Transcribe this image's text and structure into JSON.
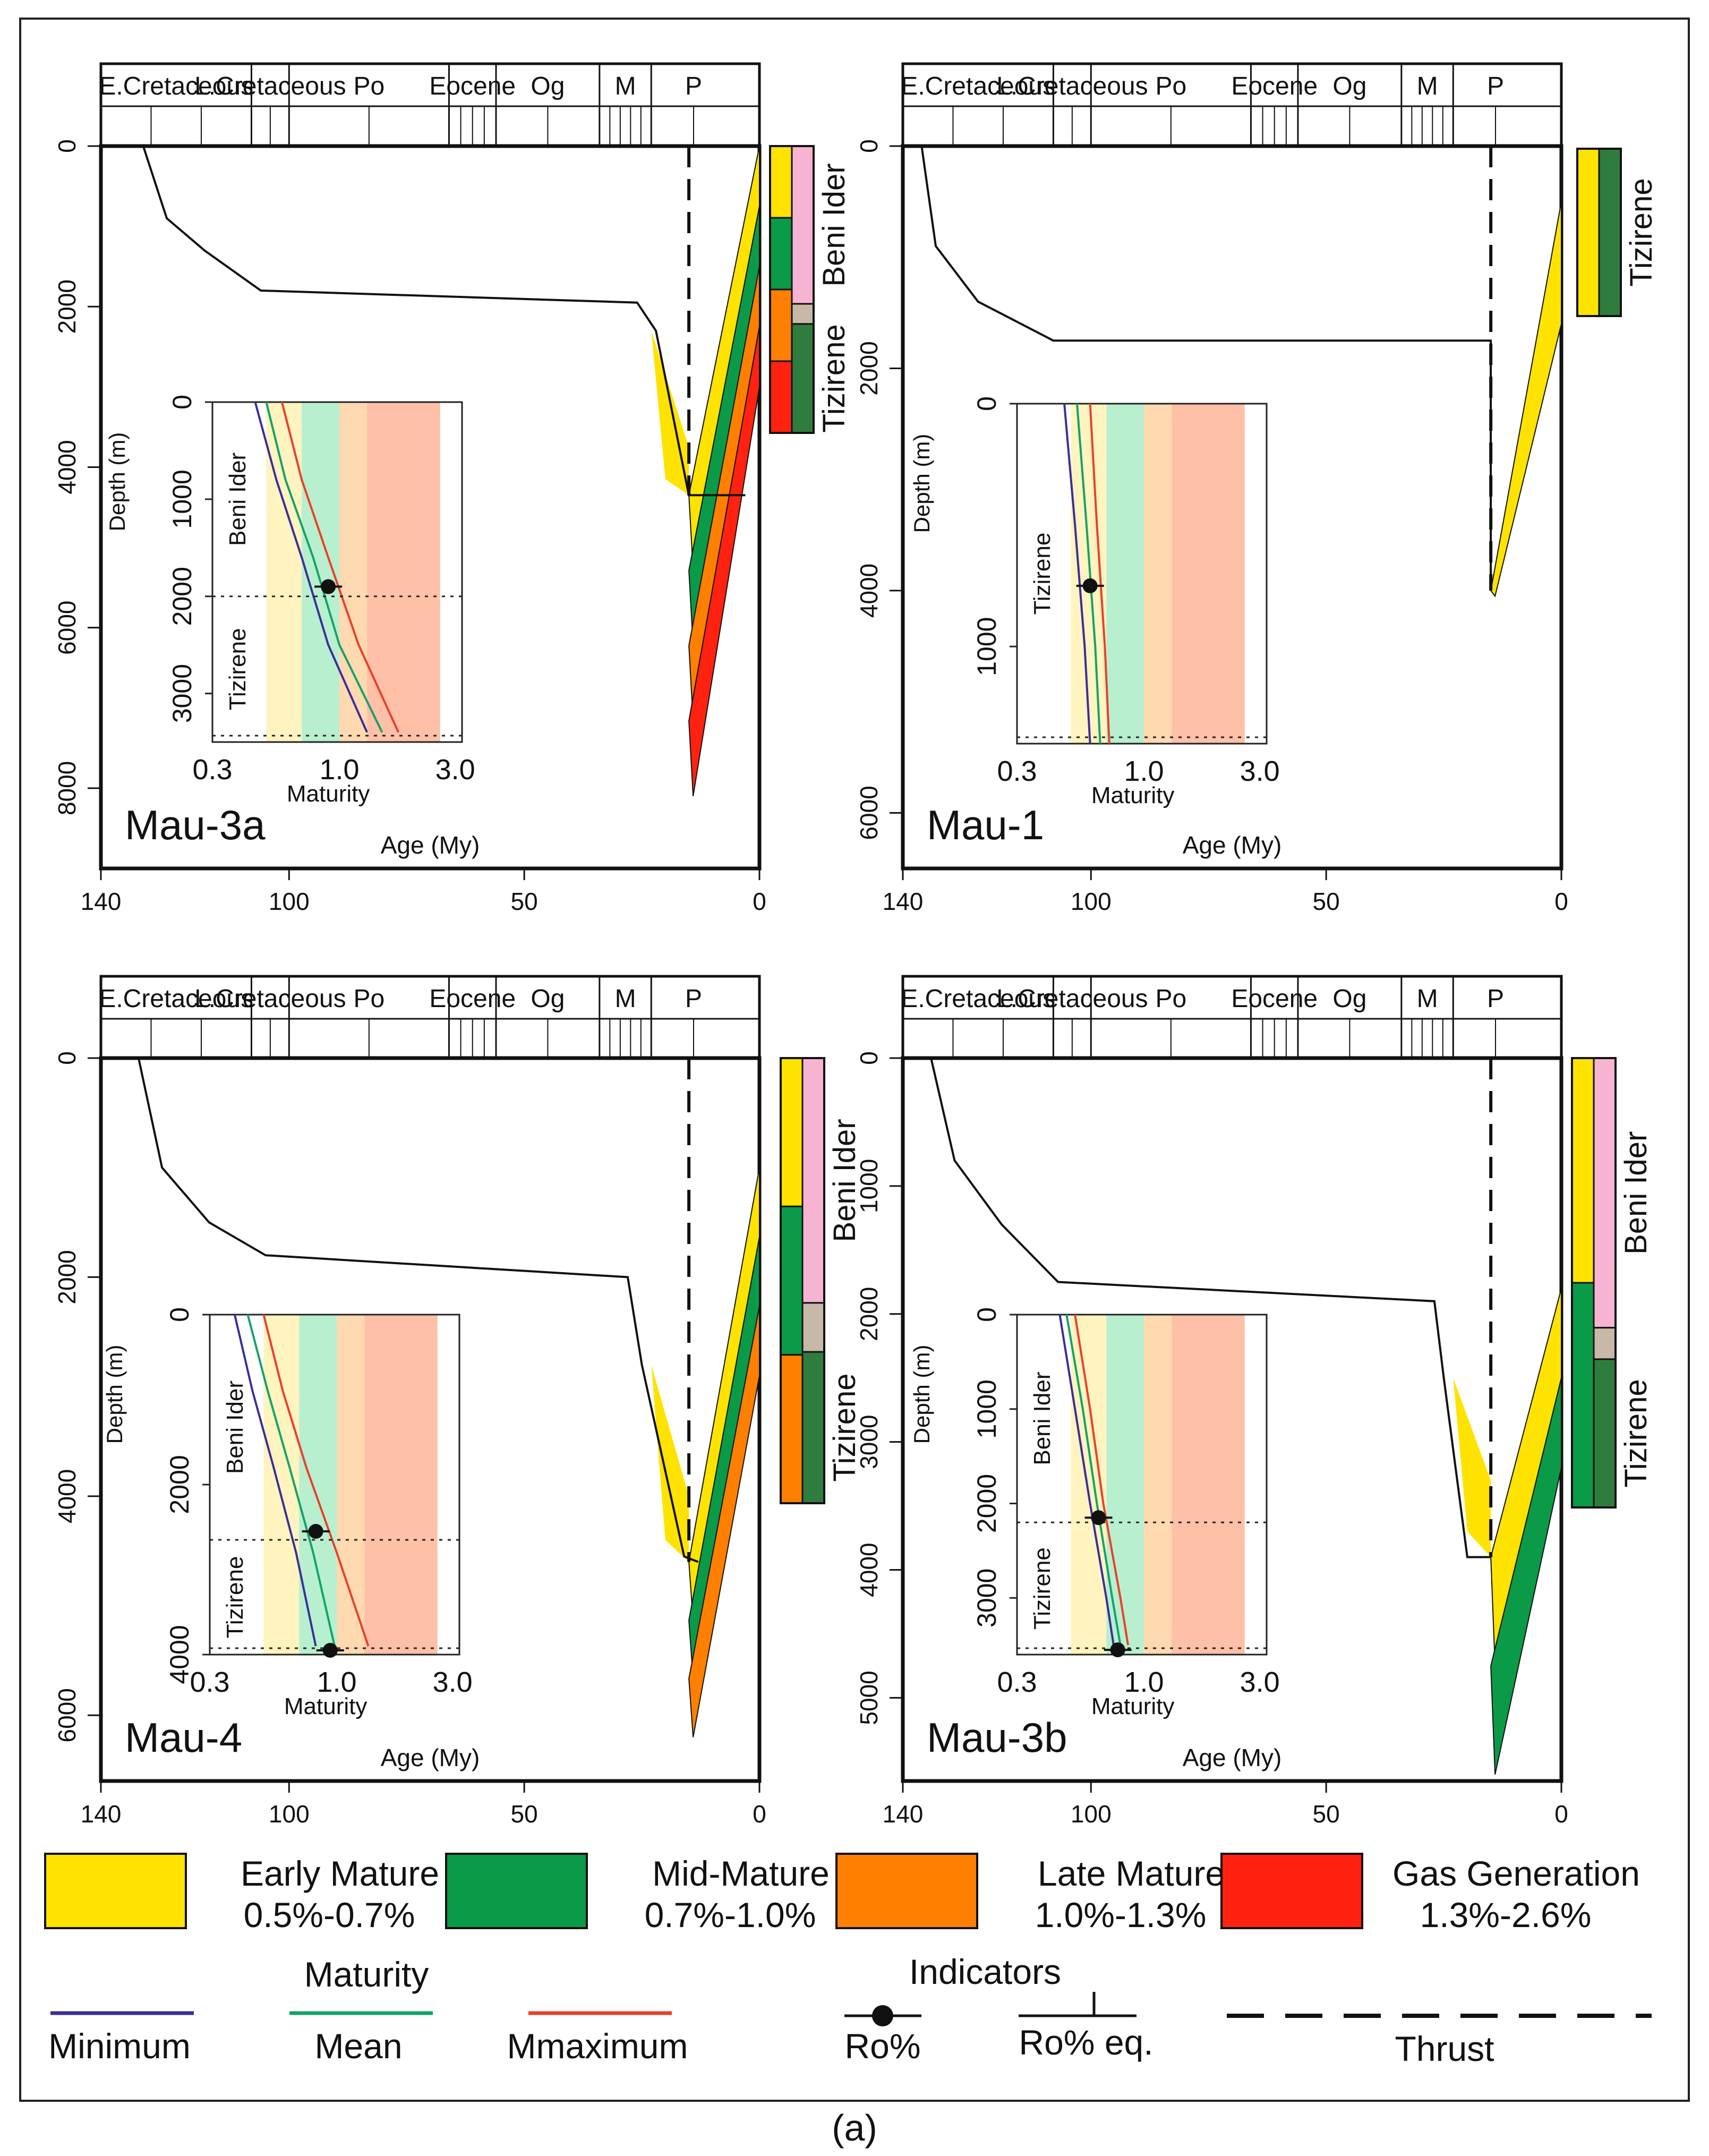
{
  "figure_caption": "(a)",
  "colors": {
    "early": "#FFE300",
    "mid": "#0B9A48",
    "late": "#FF7F00",
    "gas": "#FF2210",
    "beni_ider": "#F7B3D2",
    "tizirene": "#2E7D3E",
    "transition": "#C8B8A8",
    "min_line": "#3A2E9B",
    "mean_line": "#12A36A",
    "max_line": "#E9402B",
    "inset_early_bg": "#FFF3BF",
    "inset_mid_bg": "#B8EFCF",
    "inset_late_bg": "#FFD9B0",
    "inset_gas_bg": "#FFC0A8"
  },
  "shared": {
    "periods": [
      "E.Cretaceous",
      "L.Cretaceous",
      "Po",
      "Eocene",
      "Og",
      "M",
      "P"
    ],
    "x_ticks": [
      "140",
      "100",
      "50",
      "0"
    ],
    "inset_x_ticks": [
      "0.3",
      "1.0",
      "3.0"
    ],
    "inset_xlabel": "Maturity",
    "inset_ylabel": "Depth (m)",
    "xlabel": "Age (My)"
  },
  "chart_data": [
    {
      "type": "line",
      "title": "Mau-3a",
      "xlabel": "Age (My)",
      "xlim": [
        140,
        0
      ],
      "ylim": [
        0,
        9000
      ],
      "y_ticks": [
        "0",
        "2000",
        "4000",
        "6000",
        "8000"
      ],
      "burial_curve": [
        [
          131,
          0
        ],
        [
          126,
          900
        ],
        [
          118,
          1300
        ],
        [
          106,
          1800
        ],
        [
          26,
          1950
        ],
        [
          22,
          2300
        ],
        [
          15,
          4350
        ],
        [
          3,
          4350
        ]
      ],
      "thrust_age": 15,
      "strat_column": [
        {
          "label": "Beni Ider",
          "from": 0,
          "to": 0.55
        },
        {
          "label": "Tizirene",
          "from": 0.62,
          "to": 1.0
        }
      ],
      "maturity_column": [
        "early",
        "mid",
        "late",
        "gas"
      ],
      "inset": {
        "depth_ticks": [
          "0",
          "1000",
          "2000",
          "3000"
        ],
        "depth_max": 3500,
        "units": [
          "Beni Ider",
          "Tizirene"
        ],
        "boundary_depth": 2000,
        "series": [
          {
            "name": "Minimum",
            "points": [
              [
                0.45,
                0
              ],
              [
                0.55,
                800
              ],
              [
                0.7,
                1600
              ],
              [
                0.9,
                2500
              ],
              [
                1.3,
                3400
              ]
            ]
          },
          {
            "name": "Mean",
            "points": [
              [
                0.5,
                0
              ],
              [
                0.6,
                800
              ],
              [
                0.78,
                1600
              ],
              [
                1.0,
                2500
              ],
              [
                1.5,
                3400
              ]
            ]
          },
          {
            "name": "Mmaximum",
            "points": [
              [
                0.58,
                0
              ],
              [
                0.7,
                800
              ],
              [
                0.9,
                1600
              ],
              [
                1.2,
                2500
              ],
              [
                1.75,
                3400
              ]
            ]
          }
        ],
        "ro": [
          {
            "value": 0.9,
            "depth": 1900
          }
        ]
      }
    },
    {
      "type": "line",
      "title": "Mau-1",
      "xlabel": "Age (My)",
      "xlim": [
        140,
        0
      ],
      "ylim": [
        0,
        6500
      ],
      "y_ticks": [
        "0",
        "2000",
        "4000",
        "6000"
      ],
      "burial_curve": [
        [
          136,
          0
        ],
        [
          133,
          900
        ],
        [
          124,
          1400
        ],
        [
          108,
          1750
        ],
        [
          15,
          1750
        ],
        [
          15,
          4000
        ]
      ],
      "thrust_age": 15,
      "strat_column": [
        {
          "label": "Tizirene",
          "from": 0,
          "to": 1.0
        }
      ],
      "maturity_column": [
        "early"
      ],
      "inset": {
        "depth_ticks": [
          "0",
          "1000"
        ],
        "depth_max": 1400,
        "units": [
          "Tizirene"
        ],
        "boundary_depth": null,
        "series": [
          {
            "name": "Minimum",
            "points": [
              [
                0.47,
                0
              ],
              [
                0.52,
                500
              ],
              [
                0.57,
                1000
              ],
              [
                0.6,
                1400
              ]
            ]
          },
          {
            "name": "Mean",
            "points": [
              [
                0.53,
                0
              ],
              [
                0.58,
                500
              ],
              [
                0.63,
                1000
              ],
              [
                0.66,
                1400
              ]
            ]
          },
          {
            "name": "Mmaximum",
            "points": [
              [
                0.6,
                0
              ],
              [
                0.64,
                500
              ],
              [
                0.69,
                1000
              ],
              [
                0.72,
                1400
              ]
            ]
          }
        ],
        "ro": [
          {
            "value": 0.6,
            "depth": 750
          }
        ]
      }
    },
    {
      "type": "line",
      "title": "Mau-4",
      "xlabel": "Age (My)",
      "xlim": [
        140,
        0
      ],
      "ylim": [
        0,
        6600
      ],
      "y_ticks": [
        "0",
        "2000",
        "4000",
        "6000"
      ],
      "burial_curve": [
        [
          132,
          0
        ],
        [
          127,
          1000
        ],
        [
          117,
          1500
        ],
        [
          105,
          1800
        ],
        [
          28,
          2000
        ],
        [
          25,
          2800
        ],
        [
          16,
          4550
        ],
        [
          13,
          4600
        ]
      ],
      "thrust_age": 15,
      "strat_column": [
        {
          "label": "Beni Ider",
          "from": 0,
          "to": 0.55
        },
        {
          "label": "Tizirene",
          "from": 0.66,
          "to": 1.0
        }
      ],
      "maturity_column": [
        "early",
        "mid",
        "late"
      ],
      "inset": {
        "depth_ticks": [
          "0",
          "2000",
          "4000"
        ],
        "depth_max": 4000,
        "units": [
          "Beni Ider",
          "Tizirene"
        ],
        "boundary_depth": 2650,
        "series": [
          {
            "name": "Minimum",
            "points": [
              [
                0.38,
                0
              ],
              [
                0.45,
                900
              ],
              [
                0.55,
                1800
              ],
              [
                0.68,
                2800
              ],
              [
                0.82,
                3900
              ]
            ]
          },
          {
            "name": "Mean",
            "points": [
              [
                0.43,
                0
              ],
              [
                0.52,
                900
              ],
              [
                0.64,
                1800
              ],
              [
                0.8,
                2800
              ],
              [
                0.98,
                3900
              ]
            ]
          },
          {
            "name": "Mmaximum",
            "points": [
              [
                0.5,
                0
              ],
              [
                0.6,
                900
              ],
              [
                0.75,
                1800
              ],
              [
                1.0,
                2800
              ],
              [
                1.35,
                3900
              ]
            ]
          }
        ],
        "ro": [
          {
            "value": 0.82,
            "depth": 2550
          },
          {
            "value": 0.94,
            "depth": 3950
          }
        ]
      }
    },
    {
      "type": "line",
      "title": "Mau-3b",
      "xlabel": "Age (My)",
      "xlim": [
        140,
        0
      ],
      "ylim": [
        0,
        5650
      ],
      "y_ticks": [
        "0",
        "1000",
        "2000",
        "3000",
        "4000",
        "5000"
      ],
      "burial_curve": [
        [
          134,
          0
        ],
        [
          129,
          800
        ],
        [
          119,
          1300
        ],
        [
          107,
          1750
        ],
        [
          27,
          1900
        ],
        [
          25,
          2500
        ],
        [
          20,
          3900
        ],
        [
          15,
          3900
        ]
      ],
      "thrust_age": 15,
      "strat_column": [
        {
          "label": "Beni Ider",
          "from": 0,
          "to": 0.6
        },
        {
          "label": "Tizirene",
          "from": 0.67,
          "to": 1.0
        }
      ],
      "maturity_column": [
        "early",
        "mid"
      ],
      "inset": {
        "depth_ticks": [
          "0",
          "1000",
          "2000",
          "3000"
        ],
        "depth_max": 3600,
        "units": [
          "Beni Ider",
          "Tizirene"
        ],
        "boundary_depth": 2200,
        "series": [
          {
            "name": "Minimum",
            "points": [
              [
                0.45,
                0
              ],
              [
                0.52,
                1000
              ],
              [
                0.6,
                2000
              ],
              [
                0.7,
                3000
              ],
              [
                0.75,
                3500
              ]
            ]
          },
          {
            "name": "Mean",
            "points": [
              [
                0.48,
                0
              ],
              [
                0.56,
                1000
              ],
              [
                0.64,
                2000
              ],
              [
                0.74,
                3000
              ],
              [
                0.8,
                3500
              ]
            ]
          },
          {
            "name": "Mmaximum",
            "points": [
              [
                0.52,
                0
              ],
              [
                0.6,
                1000
              ],
              [
                0.68,
                2000
              ],
              [
                0.8,
                3000
              ],
              [
                0.86,
                3500
              ]
            ]
          }
        ],
        "ro": [
          {
            "value": 0.65,
            "depth": 2150
          },
          {
            "value": 0.78,
            "depth": 3550
          }
        ]
      }
    }
  ],
  "legend": {
    "zones": [
      {
        "key": "early",
        "name": "Early Mature",
        "range": "0.5%-0.7%"
      },
      {
        "key": "mid",
        "name": "Mid-Mature",
        "range": "0.7%-1.0%"
      },
      {
        "key": "late",
        "name": "Late Mature",
        "range": "1.0%-1.3%"
      },
      {
        "key": "gas",
        "name": "Gas Generation",
        "range": "1.3%-2.6%"
      }
    ],
    "maturity_title": "Maturity",
    "lines": [
      "Minimum",
      "Mean",
      "Mmaximum"
    ],
    "indicators_title": "Indicators",
    "indicators": [
      "Ro%",
      "Ro% eq."
    ],
    "thrust": "Thrust"
  }
}
